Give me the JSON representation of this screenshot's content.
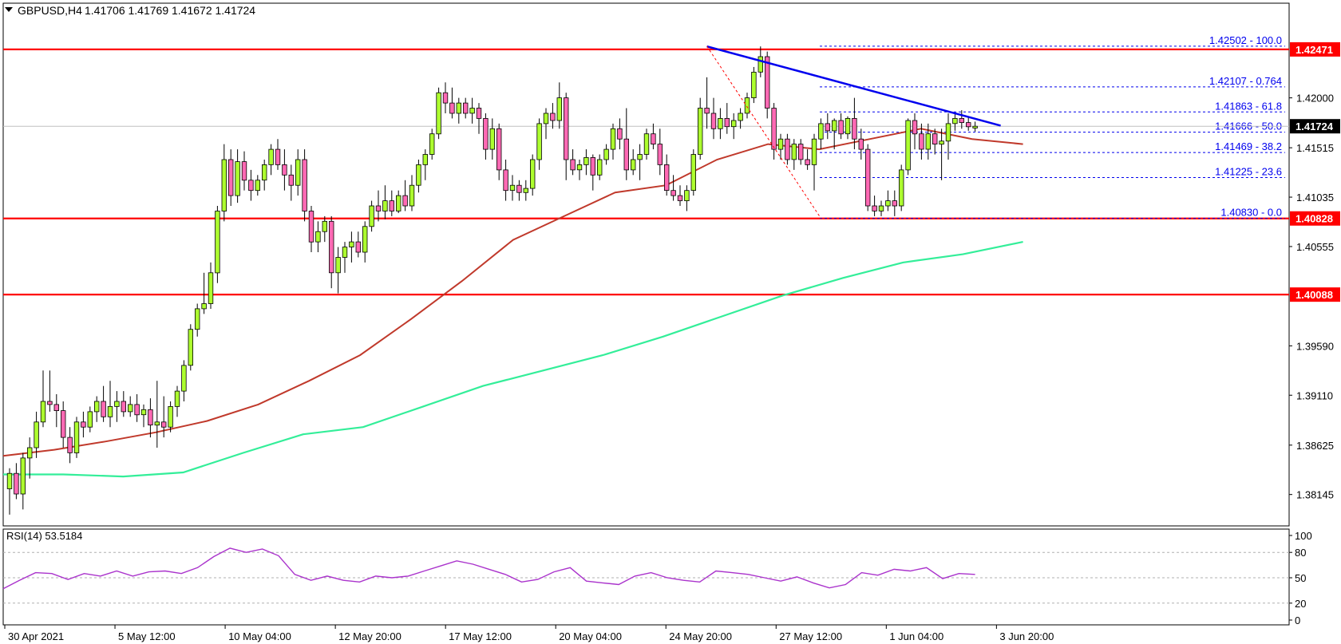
{
  "header": {
    "symbol": "GBPUSD,H4",
    "ohlc": "1.41706 1.41769 1.41672 1.41724"
  },
  "colors": {
    "bull": "#adff2f",
    "bear": "#ff69b4",
    "wick": "#000000",
    "ma_fast": "#c0392b",
    "ma_slow": "#33ee99",
    "level": "#ff0000",
    "trend": "#0000ee",
    "fib": "#0000ee",
    "rsi": "#aa33cc",
    "price_tag_bg": "#000000"
  },
  "chart_data": [
    {
      "type": "candlestick",
      "y_ticks": [
        "1.42000",
        "1.41515",
        "1.41035",
        "1.40555",
        "1.39590",
        "1.39110",
        "1.38625",
        "1.38145"
      ],
      "x_ticks": [
        "30 Apr 2021",
        "5 May 12:00",
        "10 May 04:00",
        "12 May 20:00",
        "17 May 12:00",
        "20 May 04:00",
        "24 May 20:00",
        "27 May 12:00",
        "1 Jun 04:00",
        "3 Jun 20:00"
      ],
      "ylim": [
        1.3784,
        1.4292
      ],
      "candles": [
        {
          "o": 1.382,
          "h": 1.384,
          "l": 1.3795,
          "c": 1.3835
        },
        {
          "o": 1.3835,
          "h": 1.3845,
          "l": 1.381,
          "c": 1.3815
        },
        {
          "o": 1.3815,
          "h": 1.3855,
          "l": 1.38,
          "c": 1.385
        },
        {
          "o": 1.385,
          "h": 1.387,
          "l": 1.383,
          "c": 1.386
        },
        {
          "o": 1.386,
          "h": 1.3895,
          "l": 1.385,
          "c": 1.3885
        },
        {
          "o": 1.3885,
          "h": 1.3935,
          "l": 1.388,
          "c": 1.3905
        },
        {
          "o": 1.3905,
          "h": 1.3935,
          "l": 1.3895,
          "c": 1.3902
        },
        {
          "o": 1.3902,
          "h": 1.3912,
          "l": 1.388,
          "c": 1.3896
        },
        {
          "o": 1.3896,
          "h": 1.3905,
          "l": 1.386,
          "c": 1.387
        },
        {
          "o": 1.387,
          "h": 1.388,
          "l": 1.3845,
          "c": 1.3855
        },
        {
          "o": 1.3855,
          "h": 1.389,
          "l": 1.385,
          "c": 1.3885
        },
        {
          "o": 1.3885,
          "h": 1.3895,
          "l": 1.387,
          "c": 1.388
        },
        {
          "o": 1.388,
          "h": 1.39,
          "l": 1.3875,
          "c": 1.3895
        },
        {
          "o": 1.3895,
          "h": 1.391,
          "l": 1.3885,
          "c": 1.3905
        },
        {
          "o": 1.3905,
          "h": 1.392,
          "l": 1.3885,
          "c": 1.389
        },
        {
          "o": 1.389,
          "h": 1.3925,
          "l": 1.388,
          "c": 1.39
        },
        {
          "o": 1.39,
          "h": 1.3915,
          "l": 1.3885,
          "c": 1.3905
        },
        {
          "o": 1.3905,
          "h": 1.3915,
          "l": 1.389,
          "c": 1.3895
        },
        {
          "o": 1.3895,
          "h": 1.391,
          "l": 1.389,
          "c": 1.3902
        },
        {
          "o": 1.3902,
          "h": 1.3912,
          "l": 1.3885,
          "c": 1.3892
        },
        {
          "o": 1.3892,
          "h": 1.3902,
          "l": 1.388,
          "c": 1.3897
        },
        {
          "o": 1.3897,
          "h": 1.3908,
          "l": 1.387,
          "c": 1.3882
        },
        {
          "o": 1.3882,
          "h": 1.3925,
          "l": 1.386,
          "c": 1.3885
        },
        {
          "o": 1.3885,
          "h": 1.391,
          "l": 1.387,
          "c": 1.388
        },
        {
          "o": 1.388,
          "h": 1.3905,
          "l": 1.3875,
          "c": 1.39
        },
        {
          "o": 1.39,
          "h": 1.392,
          "l": 1.389,
          "c": 1.3915
        },
        {
          "o": 1.3915,
          "h": 1.3945,
          "l": 1.3905,
          "c": 1.394
        },
        {
          "o": 1.394,
          "h": 1.398,
          "l": 1.3935,
          "c": 1.3975
        },
        {
          "o": 1.3975,
          "h": 1.4,
          "l": 1.3968,
          "c": 1.3995
        },
        {
          "o": 1.3995,
          "h": 1.403,
          "l": 1.399,
          "c": 1.4
        },
        {
          "o": 1.4,
          "h": 1.404,
          "l": 1.3995,
          "c": 1.403
        },
        {
          "o": 1.403,
          "h": 1.4095,
          "l": 1.402,
          "c": 1.409
        },
        {
          "o": 1.409,
          "h": 1.4155,
          "l": 1.408,
          "c": 1.414
        },
        {
          "o": 1.414,
          "h": 1.415,
          "l": 1.4095,
          "c": 1.4105
        },
        {
          "o": 1.4105,
          "h": 1.415,
          "l": 1.4098,
          "c": 1.4138
        },
        {
          "o": 1.4138,
          "h": 1.4148,
          "l": 1.411,
          "c": 1.412
        },
        {
          "o": 1.412,
          "h": 1.413,
          "l": 1.41,
          "c": 1.411
        },
        {
          "o": 1.411,
          "h": 1.4125,
          "l": 1.4105,
          "c": 1.412
        },
        {
          "o": 1.412,
          "h": 1.414,
          "l": 1.411,
          "c": 1.4135
        },
        {
          "o": 1.4135,
          "h": 1.4155,
          "l": 1.4125,
          "c": 1.415
        },
        {
          "o": 1.415,
          "h": 1.416,
          "l": 1.413,
          "c": 1.4135
        },
        {
          "o": 1.4135,
          "h": 1.415,
          "l": 1.411,
          "c": 1.4125
        },
        {
          "o": 1.4125,
          "h": 1.4135,
          "l": 1.41,
          "c": 1.4115
        },
        {
          "o": 1.4115,
          "h": 1.415,
          "l": 1.4105,
          "c": 1.414
        },
        {
          "o": 1.414,
          "h": 1.415,
          "l": 1.408,
          "c": 1.409
        },
        {
          "o": 1.409,
          "h": 1.4095,
          "l": 1.405,
          "c": 1.406
        },
        {
          "o": 1.406,
          "h": 1.408,
          "l": 1.405,
          "c": 1.407
        },
        {
          "o": 1.407,
          "h": 1.4085,
          "l": 1.406,
          "c": 1.408
        },
        {
          "o": 1.408,
          "h": 1.4085,
          "l": 1.4015,
          "c": 1.403
        },
        {
          "o": 1.403,
          "h": 1.4055,
          "l": 1.401,
          "c": 1.4045
        },
        {
          "o": 1.4045,
          "h": 1.406,
          "l": 1.403,
          "c": 1.4055
        },
        {
          "o": 1.4055,
          "h": 1.407,
          "l": 1.404,
          "c": 1.406
        },
        {
          "o": 1.406,
          "h": 1.407,
          "l": 1.4045,
          "c": 1.405
        },
        {
          "o": 1.405,
          "h": 1.408,
          "l": 1.404,
          "c": 1.4075
        },
        {
          "o": 1.4075,
          "h": 1.41,
          "l": 1.407,
          "c": 1.4095
        },
        {
          "o": 1.4095,
          "h": 1.411,
          "l": 1.408,
          "c": 1.409
        },
        {
          "o": 1.409,
          "h": 1.4115,
          "l": 1.4082,
          "c": 1.41
        },
        {
          "o": 1.41,
          "h": 1.411,
          "l": 1.4085,
          "c": 1.409
        },
        {
          "o": 1.409,
          "h": 1.411,
          "l": 1.4088,
          "c": 1.4105
        },
        {
          "o": 1.4105,
          "h": 1.412,
          "l": 1.409,
          "c": 1.4095
        },
        {
          "o": 1.4095,
          "h": 1.4125,
          "l": 1.409,
          "c": 1.4115
        },
        {
          "o": 1.4115,
          "h": 1.414,
          "l": 1.4108,
          "c": 1.4135
        },
        {
          "o": 1.4135,
          "h": 1.415,
          "l": 1.412,
          "c": 1.4145
        },
        {
          "o": 1.4145,
          "h": 1.417,
          "l": 1.414,
          "c": 1.4165
        },
        {
          "o": 1.4165,
          "h": 1.421,
          "l": 1.416,
          "c": 1.4205
        },
        {
          "o": 1.4205,
          "h": 1.4215,
          "l": 1.4185,
          "c": 1.4195
        },
        {
          "o": 1.4195,
          "h": 1.421,
          "l": 1.418,
          "c": 1.4185
        },
        {
          "o": 1.4185,
          "h": 1.42,
          "l": 1.4175,
          "c": 1.4195
        },
        {
          "o": 1.4195,
          "h": 1.42,
          "l": 1.418,
          "c": 1.4185
        },
        {
          "o": 1.4185,
          "h": 1.42,
          "l": 1.4175,
          "c": 1.419
        },
        {
          "o": 1.419,
          "h": 1.4195,
          "l": 1.4165,
          "c": 1.418
        },
        {
          "o": 1.418,
          "h": 1.4185,
          "l": 1.414,
          "c": 1.415
        },
        {
          "o": 1.415,
          "h": 1.418,
          "l": 1.414,
          "c": 1.417
        },
        {
          "o": 1.417,
          "h": 1.4175,
          "l": 1.412,
          "c": 1.413
        },
        {
          "o": 1.413,
          "h": 1.414,
          "l": 1.41,
          "c": 1.411
        },
        {
          "o": 1.411,
          "h": 1.4125,
          "l": 1.41,
          "c": 1.4115
        },
        {
          "o": 1.4115,
          "h": 1.412,
          "l": 1.41,
          "c": 1.4108
        },
        {
          "o": 1.4108,
          "h": 1.412,
          "l": 1.41,
          "c": 1.4112
        },
        {
          "o": 1.4112,
          "h": 1.4145,
          "l": 1.4105,
          "c": 1.414
        },
        {
          "o": 1.414,
          "h": 1.418,
          "l": 1.413,
          "c": 1.4175
        },
        {
          "o": 1.4175,
          "h": 1.419,
          "l": 1.416,
          "c": 1.4185
        },
        {
          "o": 1.4185,
          "h": 1.4195,
          "l": 1.417,
          "c": 1.4178
        },
        {
          "o": 1.4178,
          "h": 1.4215,
          "l": 1.417,
          "c": 1.42
        },
        {
          "o": 1.42,
          "h": 1.4205,
          "l": 1.412,
          "c": 1.414
        },
        {
          "o": 1.414,
          "h": 1.415,
          "l": 1.4125,
          "c": 1.413
        },
        {
          "o": 1.413,
          "h": 1.414,
          "l": 1.412,
          "c": 1.4135
        },
        {
          "o": 1.4135,
          "h": 1.415,
          "l": 1.4125,
          "c": 1.4142
        },
        {
          "o": 1.4142,
          "h": 1.4145,
          "l": 1.411,
          "c": 1.4125
        },
        {
          "o": 1.4125,
          "h": 1.4145,
          "l": 1.412,
          "c": 1.414
        },
        {
          "o": 1.414,
          "h": 1.4155,
          "l": 1.4135,
          "c": 1.415
        },
        {
          "o": 1.415,
          "h": 1.4175,
          "l": 1.414,
          "c": 1.417
        },
        {
          "o": 1.417,
          "h": 1.418,
          "l": 1.415,
          "c": 1.416
        },
        {
          "o": 1.416,
          "h": 1.419,
          "l": 1.412,
          "c": 1.413
        },
        {
          "o": 1.413,
          "h": 1.415,
          "l": 1.4125,
          "c": 1.414
        },
        {
          "o": 1.414,
          "h": 1.4155,
          "l": 1.412,
          "c": 1.4145
        },
        {
          "o": 1.4145,
          "h": 1.417,
          "l": 1.414,
          "c": 1.4165
        },
        {
          "o": 1.4165,
          "h": 1.4175,
          "l": 1.415,
          "c": 1.4155
        },
        {
          "o": 1.4155,
          "h": 1.417,
          "l": 1.4125,
          "c": 1.4135
        },
        {
          "o": 1.4135,
          "h": 1.4145,
          "l": 1.4105,
          "c": 1.411
        },
        {
          "o": 1.411,
          "h": 1.4125,
          "l": 1.41,
          "c": 1.4105
        },
        {
          "o": 1.4105,
          "h": 1.4115,
          "l": 1.4095,
          "c": 1.41
        },
        {
          "o": 1.41,
          "h": 1.4115,
          "l": 1.409,
          "c": 1.411
        },
        {
          "o": 1.411,
          "h": 1.415,
          "l": 1.4105,
          "c": 1.4145
        },
        {
          "o": 1.4145,
          "h": 1.42,
          "l": 1.414,
          "c": 1.419
        },
        {
          "o": 1.419,
          "h": 1.422,
          "l": 1.417,
          "c": 1.4185
        },
        {
          "o": 1.4185,
          "h": 1.42,
          "l": 1.416,
          "c": 1.417
        },
        {
          "o": 1.417,
          "h": 1.419,
          "l": 1.416,
          "c": 1.418
        },
        {
          "o": 1.418,
          "h": 1.4195,
          "l": 1.4165,
          "c": 1.4172
        },
        {
          "o": 1.4172,
          "h": 1.4185,
          "l": 1.416,
          "c": 1.4178
        },
        {
          "o": 1.4178,
          "h": 1.419,
          "l": 1.417,
          "c": 1.4185
        },
        {
          "o": 1.4185,
          "h": 1.4205,
          "l": 1.418,
          "c": 1.42
        },
        {
          "o": 1.42,
          "h": 1.423,
          "l": 1.4195,
          "c": 1.4225
        },
        {
          "o": 1.4225,
          "h": 1.425,
          "l": 1.422,
          "c": 1.424
        },
        {
          "o": 1.424,
          "h": 1.4245,
          "l": 1.418,
          "c": 1.419
        },
        {
          "o": 1.419,
          "h": 1.4195,
          "l": 1.414,
          "c": 1.415
        },
        {
          "o": 1.415,
          "h": 1.4165,
          "l": 1.414,
          "c": 1.416
        },
        {
          "o": 1.416,
          "h": 1.4165,
          "l": 1.4135,
          "c": 1.414
        },
        {
          "o": 1.414,
          "h": 1.416,
          "l": 1.413,
          "c": 1.4155
        },
        {
          "o": 1.4155,
          "h": 1.416,
          "l": 1.4135,
          "c": 1.414
        },
        {
          "o": 1.414,
          "h": 1.415,
          "l": 1.413,
          "c": 1.4135
        },
        {
          "o": 1.4135,
          "h": 1.4165,
          "l": 1.411,
          "c": 1.416
        },
        {
          "o": 1.416,
          "h": 1.418,
          "l": 1.415,
          "c": 1.4175
        },
        {
          "o": 1.4175,
          "h": 1.4185,
          "l": 1.416,
          "c": 1.4168
        },
        {
          "o": 1.4168,
          "h": 1.418,
          "l": 1.415,
          "c": 1.4178
        },
        {
          "o": 1.4178,
          "h": 1.4185,
          "l": 1.416,
          "c": 1.4165
        },
        {
          "o": 1.4165,
          "h": 1.4182,
          "l": 1.416,
          "c": 1.418
        },
        {
          "o": 1.418,
          "h": 1.42,
          "l": 1.415,
          "c": 1.416
        },
        {
          "o": 1.416,
          "h": 1.417,
          "l": 1.414,
          "c": 1.415
        },
        {
          "o": 1.415,
          "h": 1.4155,
          "l": 1.409,
          "c": 1.4095
        },
        {
          "o": 1.4095,
          "h": 1.4105,
          "l": 1.4085,
          "c": 1.409
        },
        {
          "o": 1.409,
          "h": 1.41,
          "l": 1.4085,
          "c": 1.4095
        },
        {
          "o": 1.4095,
          "h": 1.411,
          "l": 1.409,
          "c": 1.41
        },
        {
          "o": 1.41,
          "h": 1.411,
          "l": 1.4085,
          "c": 1.4095
        },
        {
          "o": 1.4095,
          "h": 1.4135,
          "l": 1.409,
          "c": 1.413
        },
        {
          "o": 1.413,
          "h": 1.418,
          "l": 1.4125,
          "c": 1.4178
        },
        {
          "o": 1.4178,
          "h": 1.4185,
          "l": 1.415,
          "c": 1.4165
        },
        {
          "o": 1.4165,
          "h": 1.4175,
          "l": 1.414,
          "c": 1.415
        },
        {
          "o": 1.415,
          "h": 1.4175,
          "l": 1.414,
          "c": 1.4165
        },
        {
          "o": 1.4165,
          "h": 1.417,
          "l": 1.4145,
          "c": 1.4155
        },
        {
          "o": 1.4155,
          "h": 1.417,
          "l": 1.412,
          "c": 1.4158
        },
        {
          "o": 1.4158,
          "h": 1.4185,
          "l": 1.414,
          "c": 1.4175
        },
        {
          "o": 1.4175,
          "h": 1.4185,
          "l": 1.4168,
          "c": 1.418
        },
        {
          "o": 1.418,
          "h": 1.4188,
          "l": 1.417,
          "c": 1.4176
        },
        {
          "o": 1.4176,
          "h": 1.4182,
          "l": 1.4168,
          "c": 1.4172
        },
        {
          "o": 1.41706,
          "h": 1.41769,
          "l": 1.41672,
          "c": 1.41724
        }
      ],
      "ma_fast": [
        1.3852,
        1.3858,
        1.3866,
        1.3875,
        1.3886,
        1.3902,
        1.3925,
        1.395,
        1.3985,
        1.4022,
        1.4062,
        1.4085,
        1.4108,
        1.4115,
        1.414,
        1.4155,
        1.415,
        1.416,
        1.417,
        1.416,
        1.4155
      ],
      "ma_slow": [
        1.3834,
        1.3834,
        1.3832,
        1.3836,
        1.3855,
        1.3873,
        1.388,
        1.39,
        1.392,
        1.3935,
        1.395,
        1.3968,
        1.3988,
        1.4008,
        1.4025,
        1.404,
        1.4048,
        1.406
      ],
      "levels": [
        {
          "price": 1.42471,
          "label": "1.42471"
        },
        {
          "price": 1.40828,
          "label": "1.40828"
        },
        {
          "price": 1.40088,
          "label": "1.40088"
        }
      ],
      "fib": [
        {
          "price": 1.42502,
          "label": "1.42502 - 100.0"
        },
        {
          "price": 1.42107,
          "label": "1.42107 - 0.764"
        },
        {
          "price": 1.41863,
          "label": "1.41863 - 61.8"
        },
        {
          "price": 1.41666,
          "label": "1.41666 - 50.0"
        },
        {
          "price": 1.41469,
          "label": "1.41469 - 38.2"
        },
        {
          "price": 1.41225,
          "label": "1.41225 - 23.6"
        },
        {
          "price": 1.4083,
          "label": "1.40830 - 0.0"
        }
      ],
      "trendline": {
        "from": 1.425,
        "to": 1.4173
      },
      "current_price": {
        "price": 1.41724,
        "label": "1.41724"
      }
    },
    {
      "type": "line",
      "title": "RSI(14) 53.5184",
      "ylim": [
        0,
        100
      ],
      "y_ticks": [
        "100",
        "80",
        "50",
        "20",
        "0"
      ],
      "levels": [
        80,
        50,
        20
      ],
      "values": [
        37,
        47,
        56,
        55,
        48,
        55,
        52,
        58,
        52,
        57,
        58,
        55,
        62,
        75,
        85,
        80,
        84,
        76,
        54,
        47,
        52,
        47,
        45,
        52,
        50,
        52,
        58,
        64,
        70,
        66,
        60,
        54,
        45,
        48,
        57,
        62,
        46,
        44,
        42,
        52,
        56,
        50,
        47,
        45,
        58,
        56,
        54,
        50,
        46,
        51,
        44,
        38,
        42,
        56,
        53,
        60,
        58,
        62,
        49,
        55,
        54
      ]
    }
  ]
}
